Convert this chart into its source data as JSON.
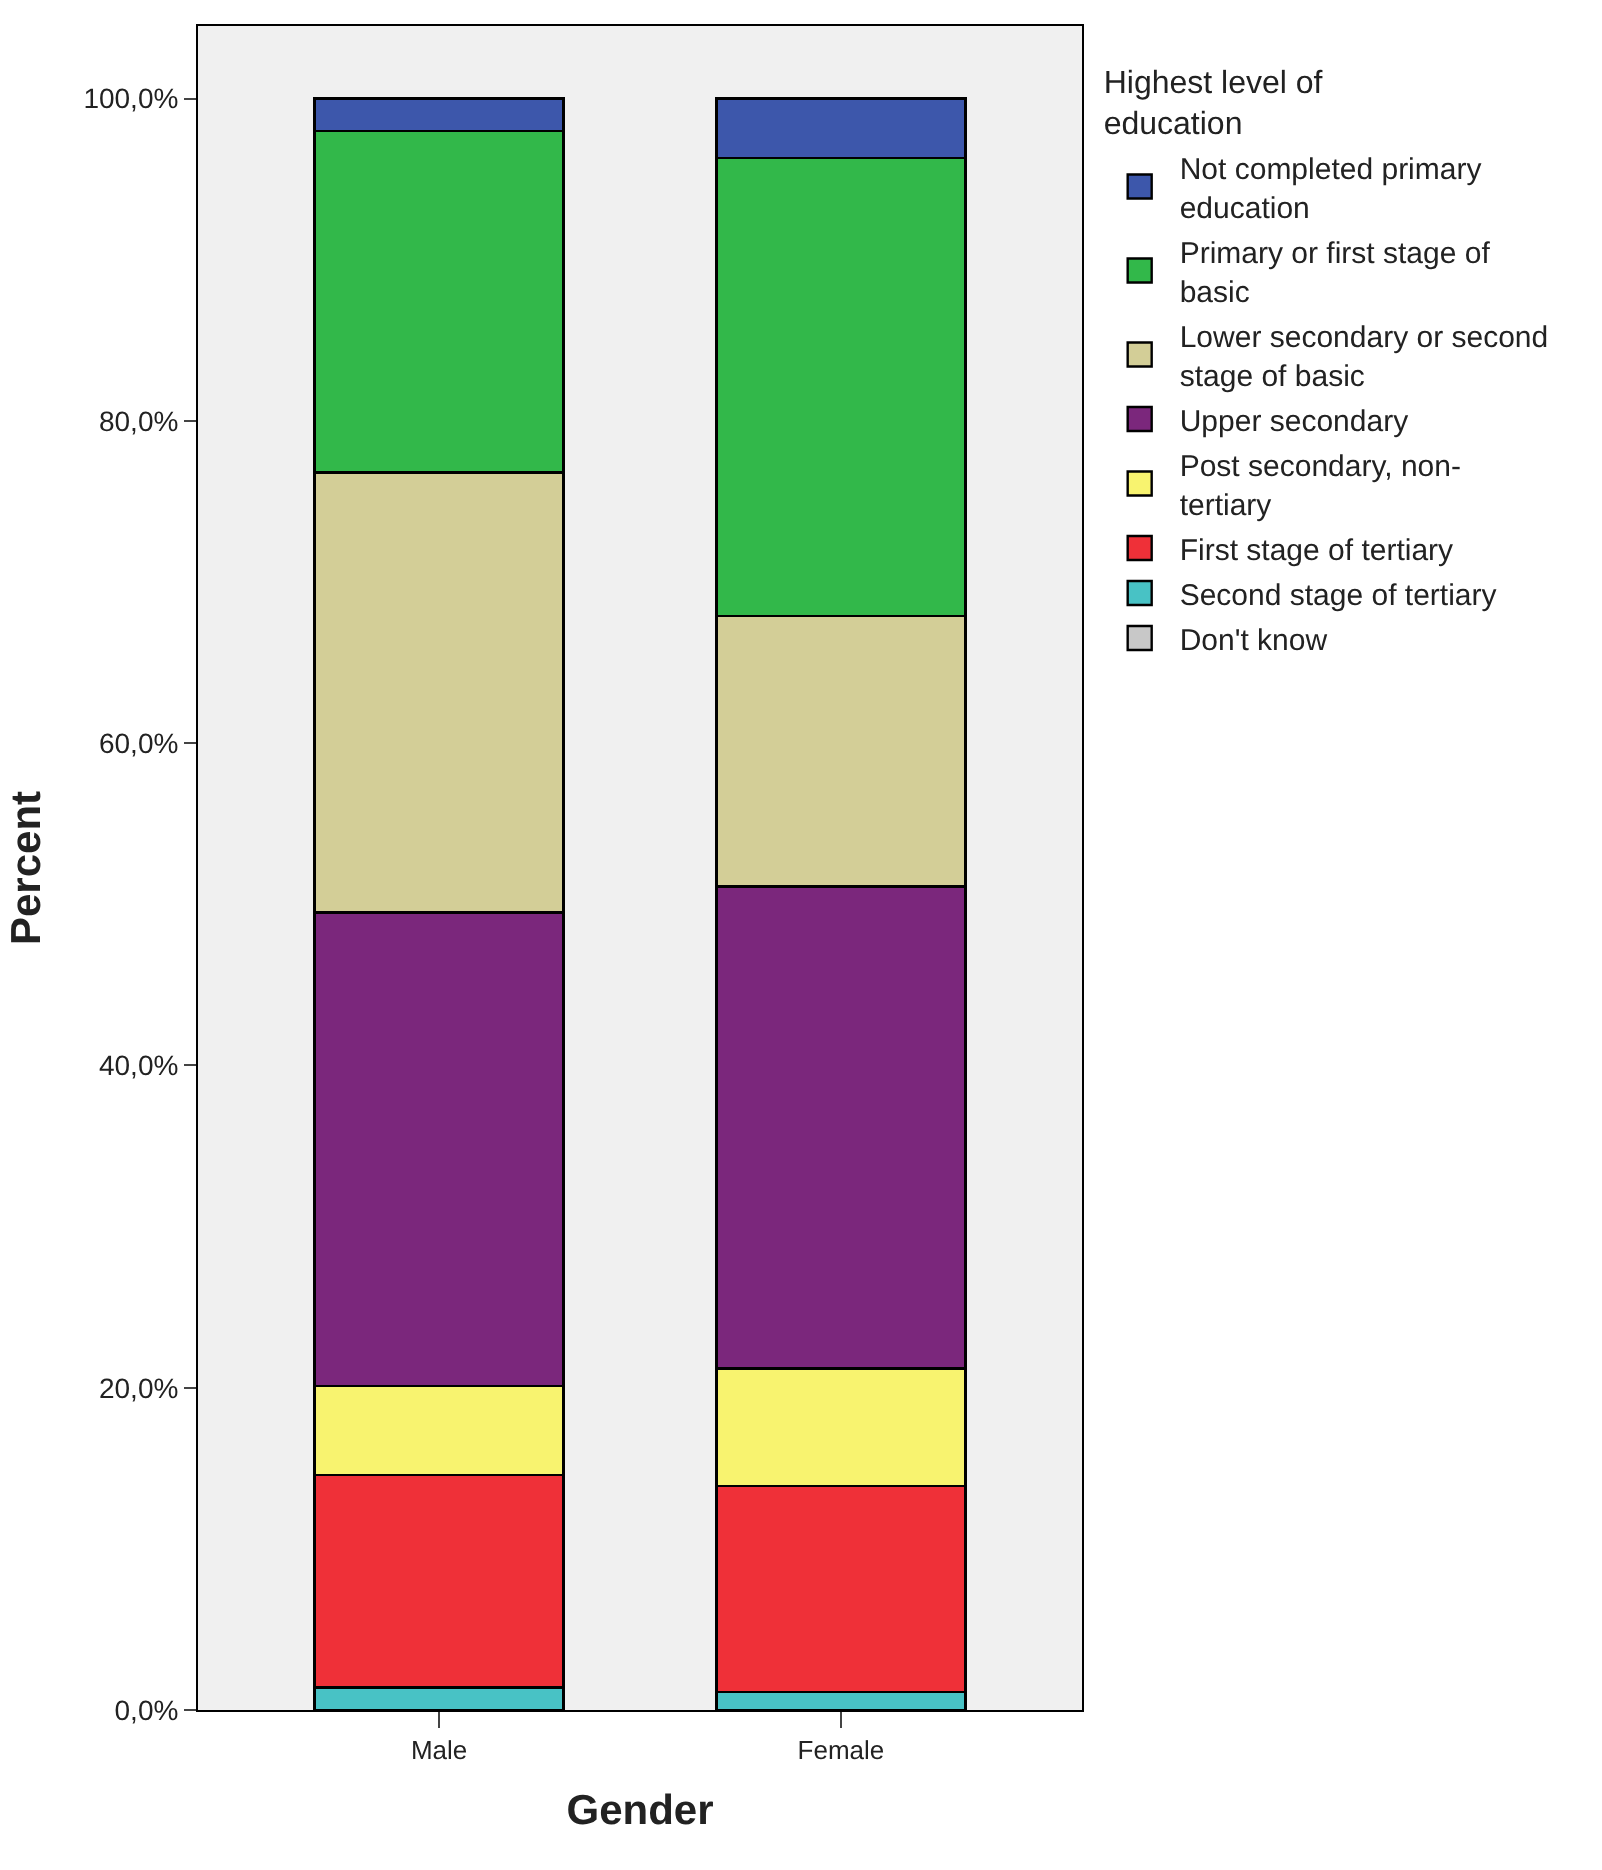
{
  "chart_data": {
    "type": "bar",
    "stacked": true,
    "xlabel": "Gender",
    "ylabel": "Percent",
    "legend_title": "Highest level of education",
    "legend": "right",
    "categories": [
      "Male",
      "Female"
    ],
    "series": [
      {
        "name": "Don't know",
        "color": "#c8c8c8",
        "values": [
          0,
          0
        ]
      },
      {
        "name": "Second stage of tertiary",
        "color": "#48c2c5",
        "values": [
          1.4,
          1.1
        ]
      },
      {
        "name": "First stage of tertiary",
        "color": "#ef3038",
        "values": [
          13.2,
          12.8
        ]
      },
      {
        "name": "Post secondary, non-tertiary",
        "color": "#f8f36f",
        "values": [
          5.5,
          7.3
        ]
      },
      {
        "name": "Upper secondary",
        "color": "#7b277c",
        "values": [
          29.4,
          29.9
        ]
      },
      {
        "name": "Lower secondary or second stage of basic",
        "color": "#d3ce97",
        "values": [
          27.3,
          16.8
        ]
      },
      {
        "name": "Primary or first stage of basic",
        "color": "#32b84a",
        "values": [
          21.2,
          28.4
        ]
      },
      {
        "name": "Not completed primary education",
        "color": "#3d57ab",
        "values": [
          2.0,
          3.7
        ]
      }
    ],
    "ylim": [
      0,
      104.5
    ],
    "yticks": [
      {
        "value": 0,
        "label": "0,0%"
      },
      {
        "value": 20,
        "label": "20,0%"
      },
      {
        "value": 40,
        "label": "40,0%"
      },
      {
        "value": 60,
        "label": "60,0%"
      },
      {
        "value": 80,
        "label": "80,0%"
      },
      {
        "value": 100,
        "label": "100,0%"
      }
    ],
    "grid": false
  }
}
